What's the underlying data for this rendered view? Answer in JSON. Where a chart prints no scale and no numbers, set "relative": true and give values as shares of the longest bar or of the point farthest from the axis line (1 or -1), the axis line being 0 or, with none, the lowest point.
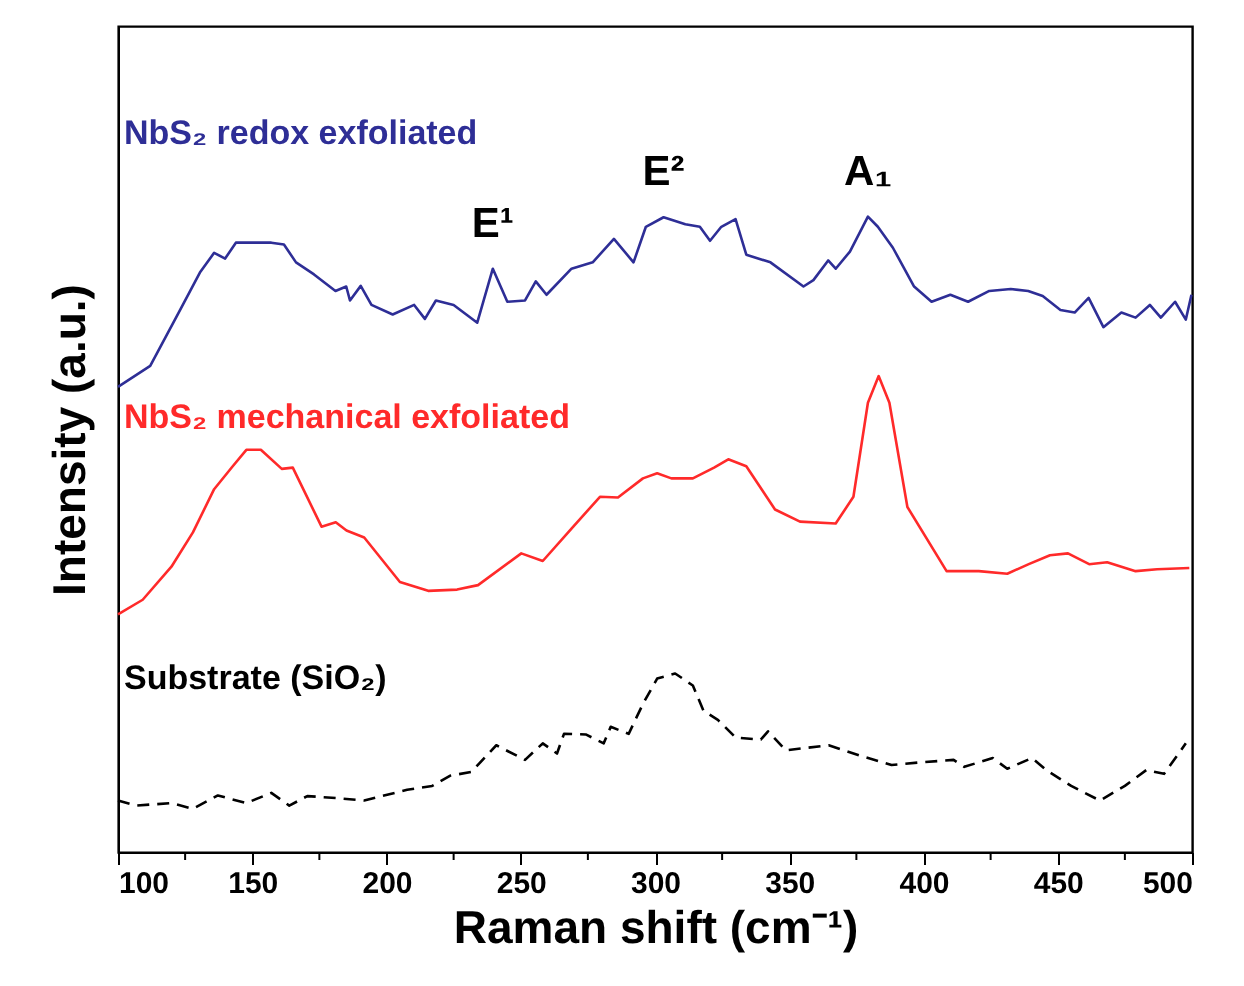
{
  "chart_data": {
    "type": "line",
    "relative": true,
    "xlabel": "Raman shift (cm⁻¹)",
    "ylabel": "Intensity (a.u.)",
    "xlim": [
      100,
      500
    ],
    "xticks": [
      100,
      {
        "value": 125,
        "label": null
      },
      150,
      {
        "value": 175,
        "label": null
      },
      200,
      {
        "value": 225,
        "label": null
      },
      250,
      {
        "value": 275,
        "label": null
      },
      300,
      {
        "value": 325,
        "label": null
      },
      350,
      {
        "value": 375,
        "label": null
      },
      400,
      {
        "value": 425,
        "label": null
      },
      450,
      {
        "value": 475,
        "label": null
      },
      500
    ],
    "grid": false,
    "marker": "none",
    "series": [
      {
        "name": "NbS₂ redox exfoliated",
        "color": "#2e2e96",
        "line_style": "solid",
        "x": [
          100,
          112,
          122.6,
          130.5,
          135.8,
          139.9,
          143.9,
          150.5,
          157.1,
          161.8,
          166.3,
          173,
          181,
          185,
          186.4,
          190.4,
          194.4,
          202.3,
          210.3,
          214.3,
          218.4,
          225,
          233.8,
          239.6,
          245,
          251.6,
          255.6,
          259.6,
          268.9,
          276.8,
          284.7,
          292,
          296.6,
          303.2,
          311.3,
          316.7,
          320.5,
          324.7,
          330,
          334,
          343,
          355.3,
          359,
          364.5,
          367.3,
          372.6,
          379.3,
          383,
          388.6,
          396.5,
          403,
          410,
          416.6,
          424.5,
          432.5,
          439,
          444.4,
          451,
          456.3,
          461.5,
          467,
          473.7,
          479,
          484.3,
          488.4,
          493.7,
          497.7,
          499.8
        ],
        "values": [
          0.732,
          0.765,
          0.849,
          0.912,
          0.943,
          0.934,
          0.959,
          0.959,
          0.959,
          0.956,
          0.928,
          0.909,
          0.883,
          0.89,
          0.868,
          0.891,
          0.861,
          0.846,
          0.861,
          0.839,
          0.868,
          0.861,
          0.833,
          0.918,
          0.866,
          0.868,
          0.898,
          0.877,
          0.918,
          0.928,
          0.965,
          0.928,
          0.984,
          0.999,
          0.988,
          0.984,
          0.962,
          0.984,
          0.996,
          0.94,
          0.928,
          0.89,
          0.9,
          0.931,
          0.918,
          0.945,
          1.0,
          0.984,
          0.951,
          0.89,
          0.866,
          0.877,
          0.866,
          0.883,
          0.886,
          0.883,
          0.875,
          0.853,
          0.849,
          0.872,
          0.826,
          0.849,
          0.841,
          0.861,
          0.841,
          0.866,
          0.838,
          0.877
        ]
      },
      {
        "name": "NbS₂ mechanical exfoliated",
        "color": "#ff2a2a",
        "line_style": "solid",
        "x": [
          100,
          109.2,
          119.9,
          127.9,
          135.8,
          142.5,
          147.8,
          153.2,
          161,
          165.1,
          175.8,
          181.1,
          185.1,
          191.7,
          205,
          215.5,
          226.3,
          234.1,
          250.2,
          258.2,
          268.9,
          279.5,
          286.2,
          295.5,
          300.8,
          306.1,
          314.1,
          322,
          327.3,
          334,
          344.7,
          354,
          367.3,
          373.9,
          379.3,
          383.3,
          387.3,
          394,
          408.6,
          420.6,
          431.2,
          439.2,
          447.1,
          453.8,
          461.7,
          468.4,
          479,
          487,
          499
        ],
        "values": [
          0.374,
          0.397,
          0.449,
          0.503,
          0.571,
          0.606,
          0.633,
          0.633,
          0.603,
          0.605,
          0.512,
          0.519,
          0.506,
          0.495,
          0.425,
          0.411,
          0.413,
          0.42,
          0.47,
          0.458,
          0.509,
          0.559,
          0.558,
          0.588,
          0.596,
          0.588,
          0.588,
          0.605,
          0.618,
          0.607,
          0.539,
          0.52,
          0.517,
          0.559,
          0.707,
          0.749,
          0.707,
          0.543,
          0.442,
          0.442,
          0.438,
          0.453,
          0.467,
          0.47,
          0.453,
          0.456,
          0.442,
          0.445,
          0.447
        ]
      },
      {
        "name": "Substrate (SiO₂)",
        "color": "#000000",
        "line_style": "dashed",
        "x": [
          100,
          106.6,
          119.9,
          127.9,
          137.2,
          147.8,
          157.1,
          163.8,
          170.5,
          181.1,
          191.7,
          207.7,
          217,
          223.6,
          231.6,
          240.9,
          251.6,
          258.2,
          263.5,
          266.1,
          274.2,
          280.9,
          283.5,
          290.2,
          295.5,
          300.8,
          307.5,
          314.1,
          318.1,
          323.4,
          330.1,
          339.4,
          342.1,
          348.7,
          364.7,
          376.1,
          388.1,
          398.7,
          411.2,
          415.2,
          425.8,
          431.2,
          440.4,
          445.7,
          455,
          465.7,
          475,
          483,
          489.6,
          497.7
        ],
        "values": [
          0.081,
          0.073,
          0.077,
          0.068,
          0.089,
          0.077,
          0.093,
          0.073,
          0.088,
          0.085,
          0.081,
          0.098,
          0.104,
          0.12,
          0.126,
          0.168,
          0.145,
          0.171,
          0.155,
          0.186,
          0.185,
          0.171,
          0.197,
          0.186,
          0.233,
          0.273,
          0.281,
          0.262,
          0.222,
          0.208,
          0.18,
          0.177,
          0.19,
          0.16,
          0.168,
          0.152,
          0.137,
          0.141,
          0.145,
          0.134,
          0.148,
          0.131,
          0.148,
          0.129,
          0.104,
          0.081,
          0.104,
          0.129,
          0.123,
          0.171
        ]
      }
    ],
    "annotations": [
      {
        "text": "E¹",
        "x": 239.6,
        "y": 0.918
      },
      {
        "text": "E²",
        "x": 303.2,
        "y": 0.999
      },
      {
        "text": "A₁",
        "x": 379.3,
        "y": 1.0
      }
    ]
  }
}
